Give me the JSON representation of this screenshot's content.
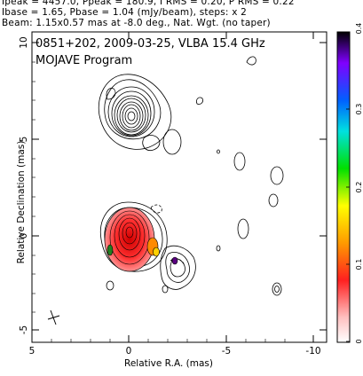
{
  "header": {
    "line1": "Ipeak = 4457.0, Ppeak = 180.9, I RMS = 0.20, P RMS = 0.22",
    "line2": "Ibase = 1.65, Pbase = 1.04 (mJy/beam), steps: x 2",
    "line3": "Beam: 1.15x0.57 mas at -8.0 deg., Nat. Wgt. (no taper)"
  },
  "plot": {
    "source_line": "0851+202, 2009-03-25, VLBA 15.4 GHz",
    "program": "MOJAVE Program",
    "xlabel": "Relative R.A. (mas)",
    "ylabel": "Relative Declination (mas)",
    "x_ticks": [
      "5",
      "0",
      "-5",
      "-10"
    ],
    "y_ticks": [
      "10",
      "5",
      "0",
      "-5"
    ],
    "colorbar_ticks": [
      "0.4",
      "0.3",
      "0.2",
      "0.1",
      "0"
    ]
  },
  "colors": {
    "peak": "#e80000",
    "mid": "#ff7a00",
    "accent": "#c000c0"
  }
}
